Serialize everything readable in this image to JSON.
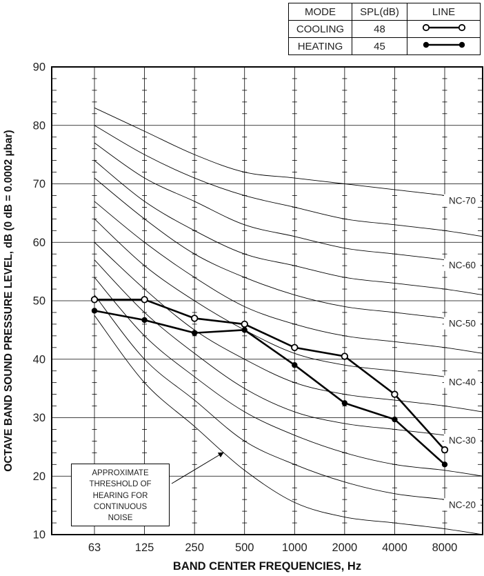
{
  "legend_table": {
    "headers": [
      "MODE",
      "SPL(dB)",
      "LINE"
    ],
    "rows": [
      {
        "mode": "COOLING",
        "spl": "48",
        "marker": "open"
      },
      {
        "mode": "HEATING",
        "spl": "45",
        "marker": "filled"
      }
    ]
  },
  "chart_data": {
    "type": "line",
    "xlabel": "BAND CENTER FREQUENCIES, Hz",
    "ylabel": "OCTAVE BAND SOUND PRESSURE LEVEL, dB (0 dB = 0.0002 µbar)",
    "categories": [
      "63",
      "125",
      "250",
      "500",
      "1000",
      "2000",
      "4000",
      "8000"
    ],
    "ylim": [
      10,
      90
    ],
    "yticks": [
      10,
      20,
      30,
      40,
      50,
      60,
      70,
      80,
      90
    ],
    "minor_tick_db": 2,
    "grid": "on",
    "legend_position": "top-right",
    "series": [
      {
        "name": "COOLING",
        "spl_db": 48,
        "marker": "open",
        "values": [
          50.2,
          50.2,
          47,
          46,
          42,
          40.5,
          34,
          24.5
        ]
      },
      {
        "name": "HEATING",
        "spl_db": 45,
        "marker": "filled",
        "values": [
          48.3,
          46.7,
          44.5,
          45,
          39,
          32.5,
          29.7,
          22
        ]
      }
    ],
    "nc_curves": [
      {
        "name": "NC-70",
        "label": "NC-70",
        "values": [
          83,
          79,
          75,
          72,
          71,
          70,
          69,
          68
        ]
      },
      {
        "name": "NC-65",
        "label": "",
        "values": [
          80,
          75,
          71,
          68,
          66,
          64,
          63,
          62
        ]
      },
      {
        "name": "NC-60",
        "label": "NC-60",
        "values": [
          77,
          71,
          67,
          63,
          61,
          59,
          58,
          57
        ]
      },
      {
        "name": "NC-55",
        "label": "",
        "values": [
          74,
          67,
          62,
          58,
          56,
          54,
          53,
          52
        ]
      },
      {
        "name": "NC-50",
        "label": "NC-50",
        "values": [
          71,
          64,
          58,
          54,
          51,
          49,
          48,
          47
        ]
      },
      {
        "name": "NC-45",
        "label": "",
        "values": [
          67,
          60,
          54,
          49,
          46,
          44,
          43,
          42
        ]
      },
      {
        "name": "NC-40",
        "label": "NC-40",
        "values": [
          64,
          56,
          50,
          45,
          41,
          39,
          38,
          37
        ]
      },
      {
        "name": "NC-35",
        "label": "",
        "values": [
          60,
          52,
          45,
          40,
          36,
          34,
          33,
          32
        ]
      },
      {
        "name": "NC-30",
        "label": "NC-30",
        "values": [
          57,
          48,
          41,
          35,
          31,
          29,
          28,
          27
        ]
      },
      {
        "name": "NC-25",
        "label": "",
        "values": [
          54,
          44,
          37,
          31,
          27,
          24,
          22,
          21
        ]
      },
      {
        "name": "NC-20",
        "label": "NC-20",
        "values": [
          51,
          40,
          33,
          26,
          22,
          19,
          17,
          16
        ]
      },
      {
        "name": "THRESHOLD",
        "label": "",
        "values": [
          47.5,
          36,
          28.5,
          21,
          15.5,
          13,
          12,
          11
        ]
      }
    ],
    "annotation": {
      "lines": [
        "APPROXIMATE",
        "THRESHOLD OF",
        "HEARING FOR",
        "CONTINUOUS",
        "NOISE"
      ]
    }
  }
}
